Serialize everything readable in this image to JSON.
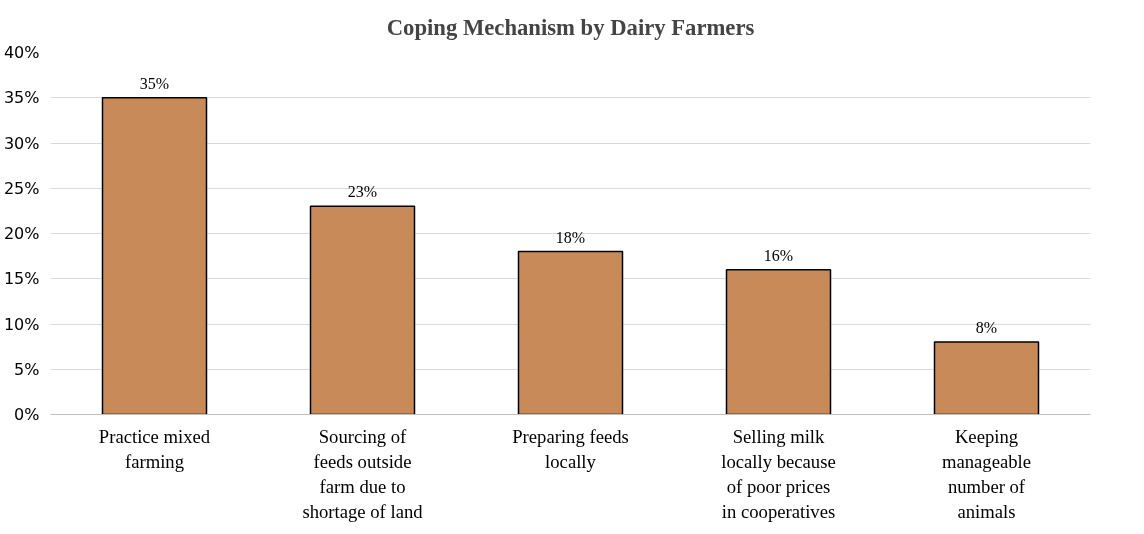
{
  "chart_data": {
    "type": "bar",
    "title": "Coping Mechanism by Dairy Farmers",
    "categories": [
      "Practice mixed farming",
      "Sourcing of feeds outside farm due to shortage of land",
      "Preparing feeds locally",
      "Selling milk locally because of poor prices in cooperatives",
      "Keeping manageable number of animals"
    ],
    "values": [
      35,
      23,
      18,
      16,
      8
    ],
    "value_labels": [
      "35%",
      "23%",
      "18%",
      "16%",
      "8%"
    ],
    "color": "#c98a5a",
    "ylim": [
      0,
      40
    ],
    "yticks": [
      {
        "value": 0,
        "label": "0%"
      },
      {
        "value": 5,
        "label": "5%"
      },
      {
        "value": 10,
        "label": "10%"
      },
      {
        "value": 15,
        "label": "15%"
      },
      {
        "value": 20,
        "label": "20%"
      },
      {
        "value": 25,
        "label": "25%"
      },
      {
        "value": 30,
        "label": "30%"
      },
      {
        "value": 35,
        "label": "35%"
      },
      {
        "value": 40,
        "label": "40%"
      }
    ],
    "grid": "y"
  }
}
